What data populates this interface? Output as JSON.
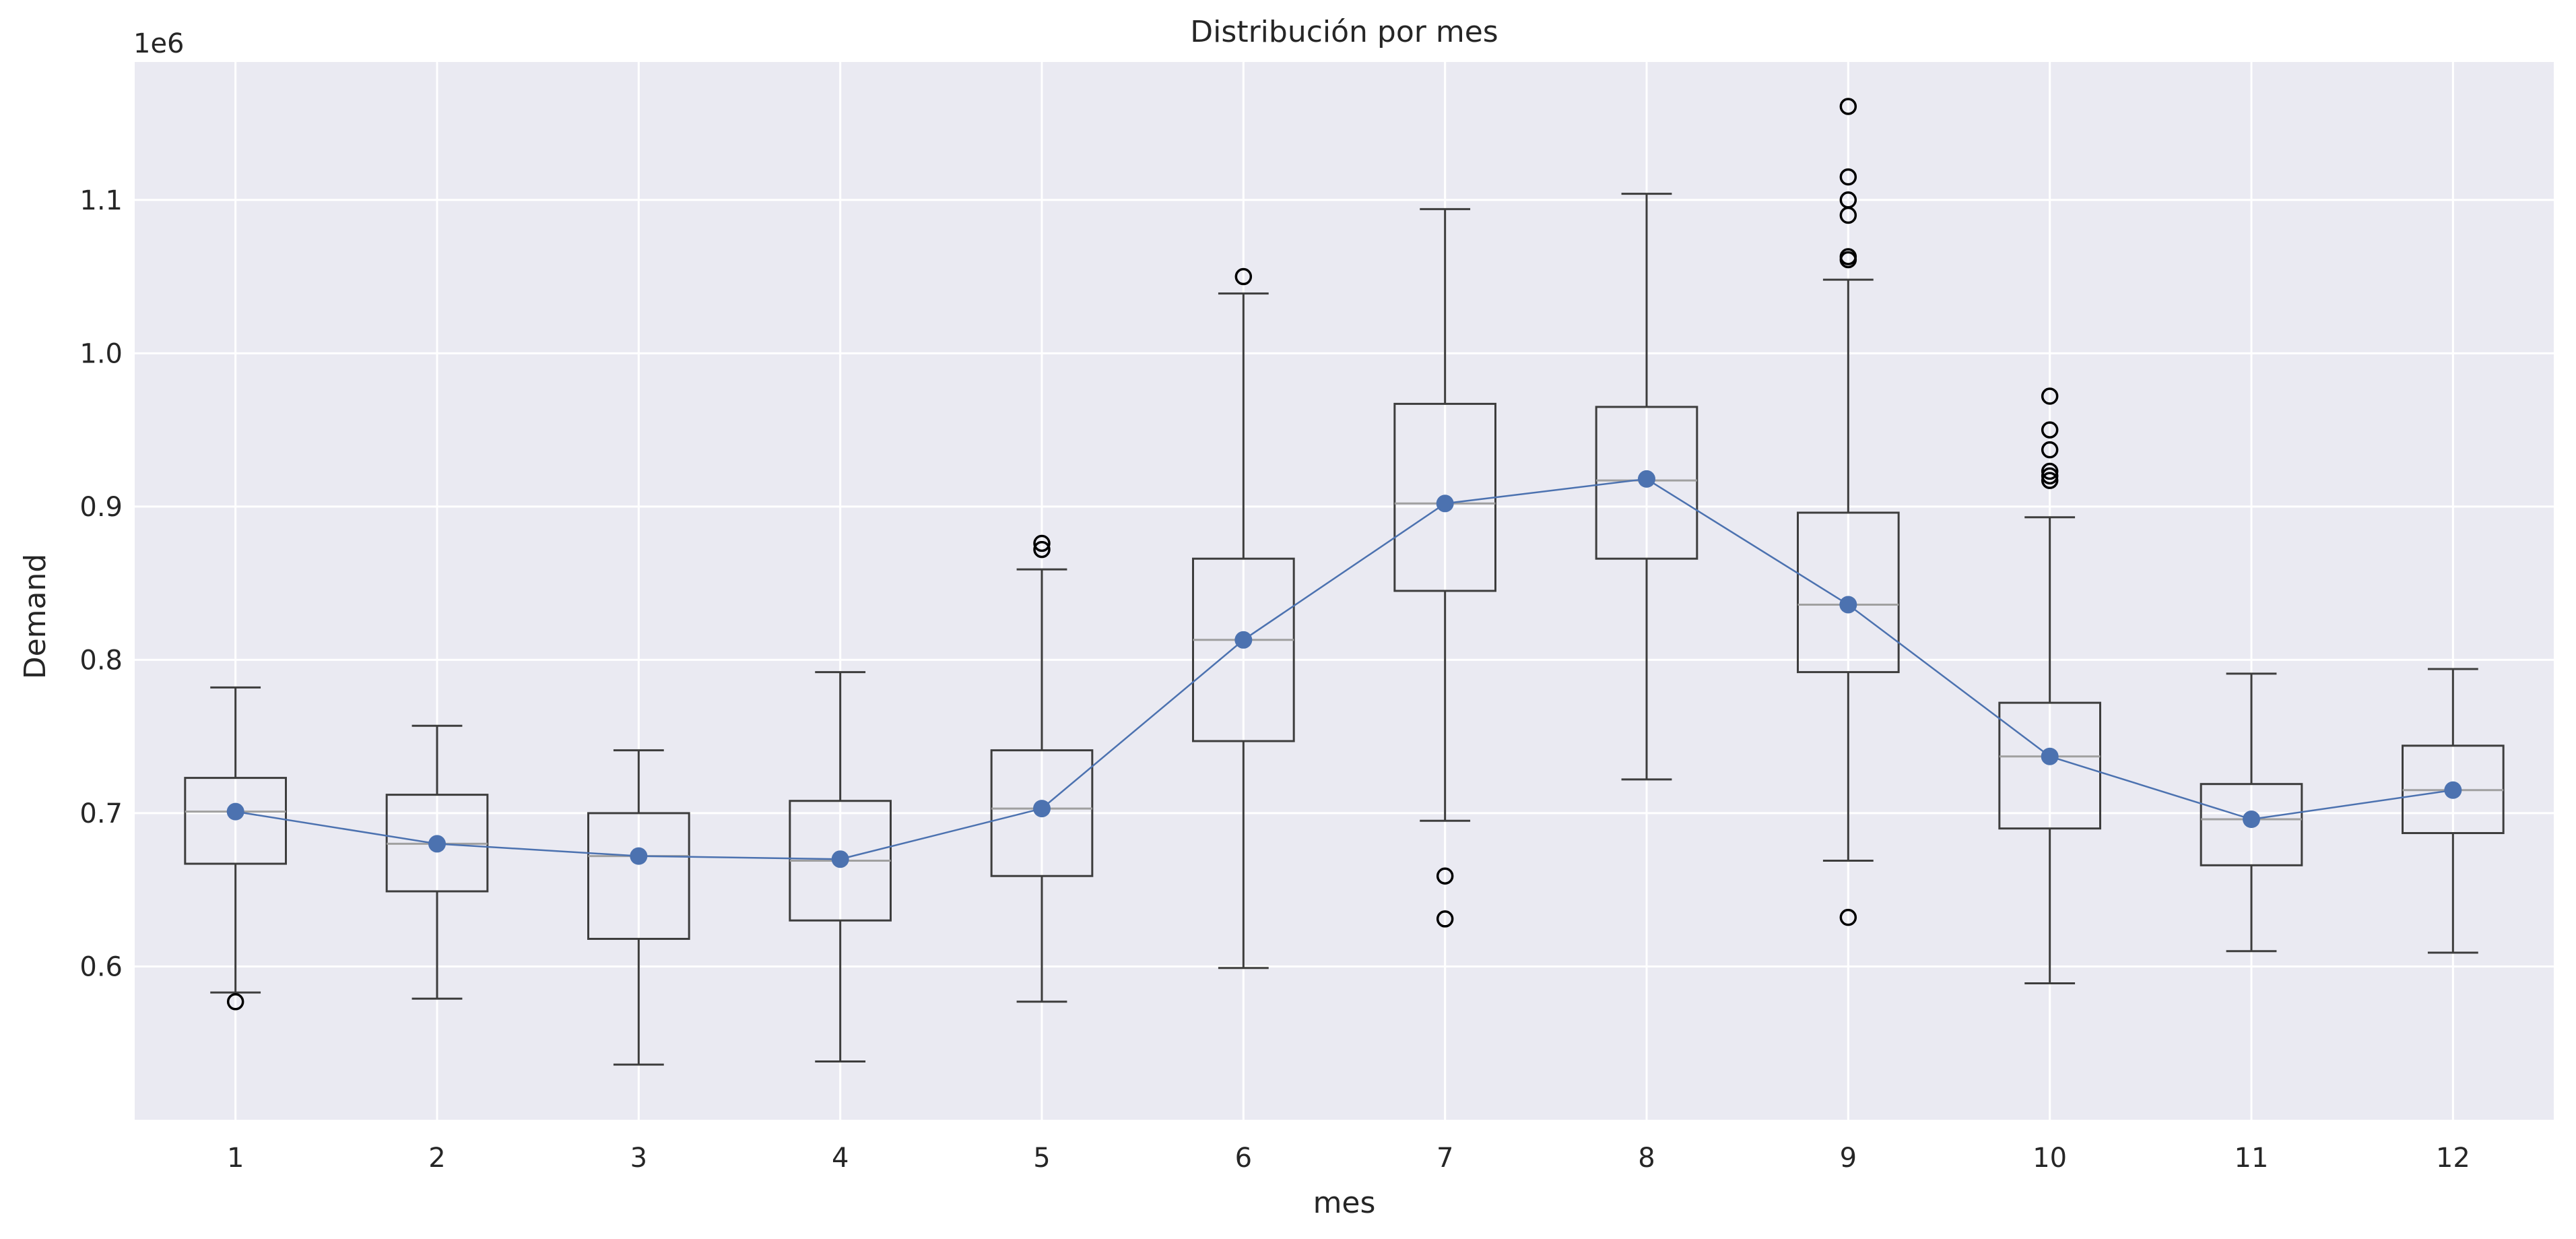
{
  "chart_data": {
    "type": "box",
    "title": "Distribución por mes",
    "xlabel": "mes",
    "ylabel": "Demand",
    "y_offset_label": "1e6",
    "y_scale": 1000000,
    "ylim": [
      0.5,
      1.19
    ],
    "yticks": [
      0.6,
      0.7,
      0.8,
      0.9,
      1.0,
      1.1
    ],
    "ytick_labels": [
      "0.6",
      "0.7",
      "0.8",
      "0.9",
      "1.0",
      "1.1"
    ],
    "grid": true,
    "categories": [
      "1",
      "2",
      "3",
      "4",
      "5",
      "6",
      "7",
      "8",
      "9",
      "10",
      "11",
      "12"
    ],
    "boxes": [
      {
        "whisker_low": 583000,
        "q1": 667000,
        "median": 701000,
        "q3": 723000,
        "whisker_high": 782000,
        "outliers": [
          577000
        ]
      },
      {
        "whisker_low": 579000,
        "q1": 649000,
        "median": 680000,
        "q3": 712000,
        "whisker_high": 757000,
        "outliers": []
      },
      {
        "whisker_low": 536000,
        "q1": 618000,
        "median": 672000,
        "q3": 700000,
        "whisker_high": 741000,
        "outliers": []
      },
      {
        "whisker_low": 538000,
        "q1": 630000,
        "median": 669000,
        "q3": 708000,
        "whisker_high": 792000,
        "outliers": []
      },
      {
        "whisker_low": 577000,
        "q1": 659000,
        "median": 703000,
        "q3": 741000,
        "whisker_high": 859000,
        "outliers": [
          872000,
          876000
        ]
      },
      {
        "whisker_low": 599000,
        "q1": 747000,
        "median": 813000,
        "q3": 866000,
        "whisker_high": 1039000,
        "outliers": [
          1050000
        ]
      },
      {
        "whisker_low": 695000,
        "q1": 845000,
        "median": 902000,
        "q3": 967000,
        "whisker_high": 1094000,
        "outliers": [
          631000,
          659000
        ]
      },
      {
        "whisker_low": 722000,
        "q1": 866000,
        "median": 917000,
        "q3": 965000,
        "whisker_high": 1104000,
        "outliers": []
      },
      {
        "whisker_low": 669000,
        "q1": 792000,
        "median": 836000,
        "q3": 896000,
        "whisker_high": 1048000,
        "outliers": [
          632000,
          1061000,
          1063000,
          1090000,
          1100000,
          1115000,
          1161000
        ]
      },
      {
        "whisker_low": 589000,
        "q1": 690000,
        "median": 737000,
        "q3": 772000,
        "whisker_high": 893000,
        "outliers": [
          917000,
          920000,
          923000,
          937000,
          950000,
          972000
        ]
      },
      {
        "whisker_low": 610000,
        "q1": 666000,
        "median": 696000,
        "q3": 719000,
        "whisker_high": 791000,
        "outliers": []
      },
      {
        "whisker_low": 609000,
        "q1": 687000,
        "median": 715000,
        "q3": 744000,
        "whisker_high": 794000,
        "outliers": []
      }
    ],
    "line": {
      "values": [
        701000,
        680000,
        672000,
        670000,
        703000,
        813000,
        902000,
        918000,
        836000,
        737000,
        696000,
        715000
      ],
      "color": "#4c72b0"
    },
    "colors": {
      "background": "#eaeaf2",
      "grid": "#ffffff",
      "box": "#3d3d3d",
      "median": "#a0a0a0",
      "line": "#4c72b0"
    }
  }
}
